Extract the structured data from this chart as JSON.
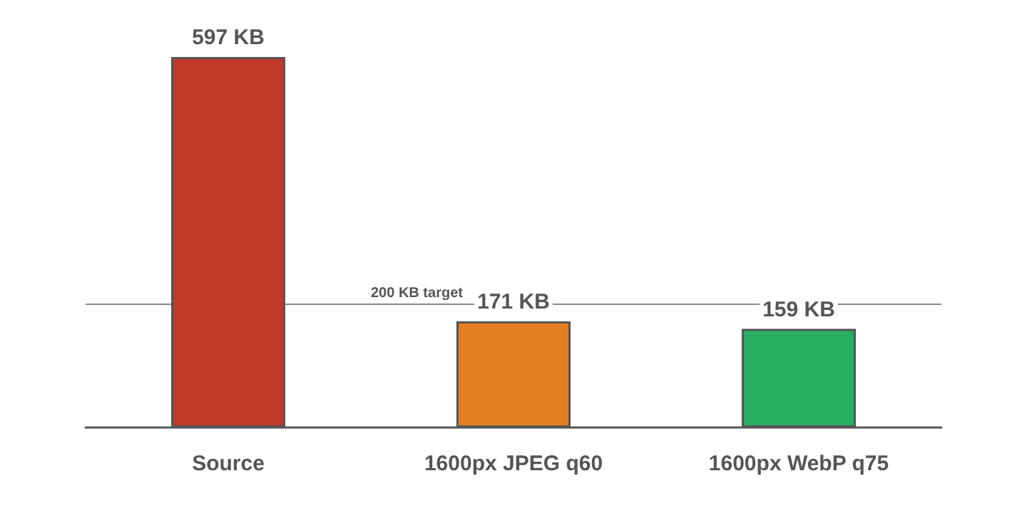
{
  "chart_data": {
    "type": "bar",
    "categories": [
      "Source",
      "1600px JPEG q60",
      "1600px WebP q75"
    ],
    "values": [
      597,
      171,
      159
    ],
    "colors": [
      "#c0392b",
      "#e67e22",
      "#27ae60"
    ],
    "value_labels": [
      "597 KB",
      "171 KB",
      "159 KB"
    ],
    "ref_lines": [
      {
        "axis": "y",
        "value": 200,
        "label": "200 KB target",
        "color": "#888888"
      }
    ],
    "grid": false
  }
}
